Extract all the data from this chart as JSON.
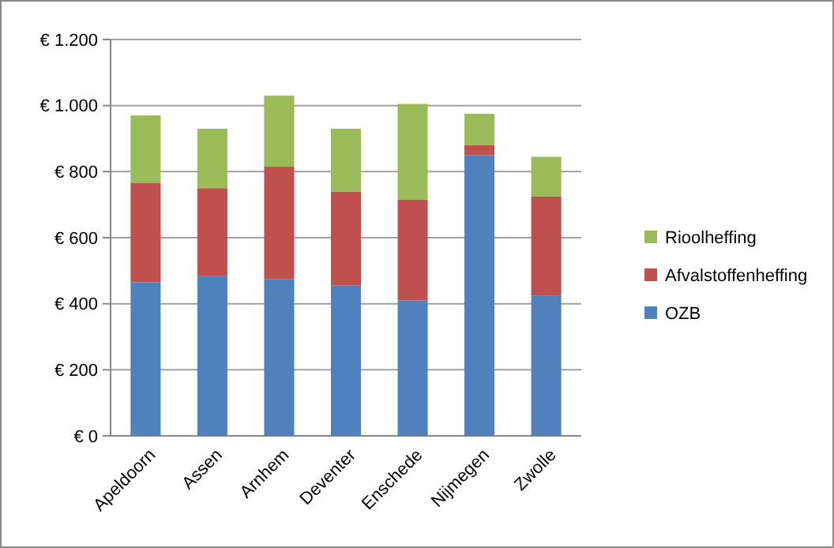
{
  "chart_data": {
    "type": "bar",
    "stacked": true,
    "categories": [
      "Apeldoorn",
      "Assen",
      "Arnhem",
      "Deventer",
      "Enschede",
      "Nijmegen",
      "Zwolle"
    ],
    "series": [
      {
        "name": "OZB",
        "color": "#4f81bd",
        "values": [
          465,
          485,
          475,
          455,
          410,
          850,
          425
        ]
      },
      {
        "name": "Afvalstoffenheffing",
        "color": "#c0504d",
        "values": [
          300,
          265,
          340,
          285,
          305,
          30,
          300
        ]
      },
      {
        "name": "Rioolheffing",
        "color": "#9bbb59",
        "values": [
          205,
          180,
          215,
          190,
          290,
          95,
          120
        ]
      }
    ],
    "ylim": [
      0,
      1200
    ],
    "yticks": [
      {
        "value": 0,
        "label": "€ 0"
      },
      {
        "value": 200,
        "label": "€ 200"
      },
      {
        "value": 400,
        "label": "€ 400"
      },
      {
        "value": 600,
        "label": "€ 600"
      },
      {
        "value": 800,
        "label": "€ 800"
      },
      {
        "value": 1000,
        "label": "€ 1.000"
      },
      {
        "value": 1200,
        "label": "€ 1.200"
      }
    ],
    "grid": "y",
    "legend": "right"
  }
}
